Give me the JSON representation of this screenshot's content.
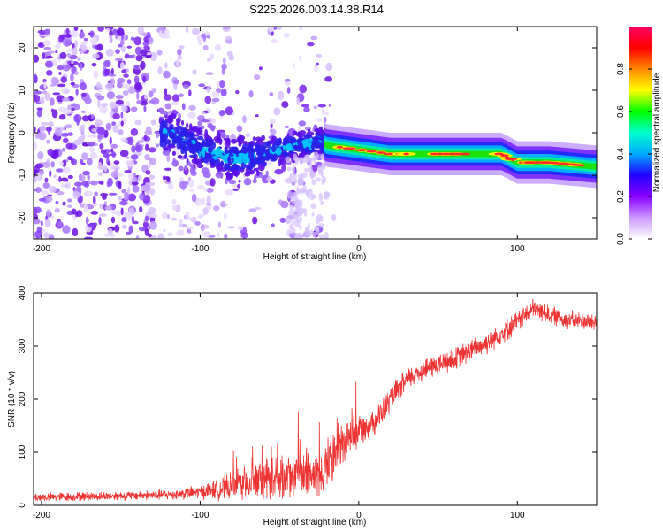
{
  "title": "S225.2026.003.14.38.R14",
  "chart_data": [
    {
      "type": "heatmap",
      "xlabel": "Height of straight line (km)",
      "ylabel": "Frequency (Hz)",
      "xlim": [
        -205,
        150
      ],
      "ylim": [
        -25,
        25
      ],
      "xticks": [
        -200,
        -100,
        0,
        100
      ],
      "yticks": [
        -20,
        -10,
        0,
        10,
        20
      ],
      "ridge": {
        "description_points_x": [
          -120,
          -100,
          -80,
          -60,
          -40,
          -25,
          -20,
          0,
          20,
          40,
          60,
          90,
          100,
          120,
          150
        ],
        "frequency_hz": [
          0,
          -4,
          -6,
          -5,
          -3,
          -2,
          -3,
          -4,
          -5,
          -5,
          -5,
          -5,
          -7,
          -7,
          -8
        ]
      },
      "colorbar": {
        "label": "Normalized spectral amplitude",
        "range": [
          0.0,
          1.0
        ],
        "ticks": [
          "0.0",
          "0.2",
          "0.4",
          "0.6",
          "0.8"
        ],
        "colors": [
          "#ffffff",
          "#cc99ff",
          "#8800ff",
          "#2200ff",
          "#00aaff",
          "#00ffcc",
          "#00ff00",
          "#ffff00",
          "#ff8800",
          "#ff0000",
          "#ff0066"
        ]
      }
    },
    {
      "type": "line",
      "xlabel": "Height of straight line (km)",
      "ylabel": "SNR (10 * v/v)",
      "xlim": [
        -205,
        150
      ],
      "ylim": [
        0,
        400
      ],
      "xticks": [
        -200,
        -100,
        0,
        100
      ],
      "yticks": [
        0,
        100,
        200,
        300,
        400
      ],
      "color": "#ee3333",
      "trend_x": [
        -205,
        -150,
        -120,
        -100,
        -80,
        -60,
        -40,
        -25,
        -20,
        -15,
        -10,
        -5,
        0,
        5,
        10,
        15,
        20,
        30,
        40,
        60,
        80,
        100,
        110,
        130,
        150
      ],
      "trend_y": [
        15,
        18,
        20,
        25,
        35,
        50,
        55,
        60,
        75,
        95,
        110,
        130,
        145,
        150,
        160,
        175,
        200,
        235,
        255,
        275,
        305,
        345,
        370,
        350,
        345
      ],
      "noise_amplitude": [
        10,
        10,
        12,
        15,
        30,
        45,
        45,
        55,
        60,
        55,
        45,
        40,
        35,
        30,
        30,
        30,
        28,
        25,
        25,
        25,
        25,
        25,
        22,
        20,
        20
      ]
    }
  ]
}
